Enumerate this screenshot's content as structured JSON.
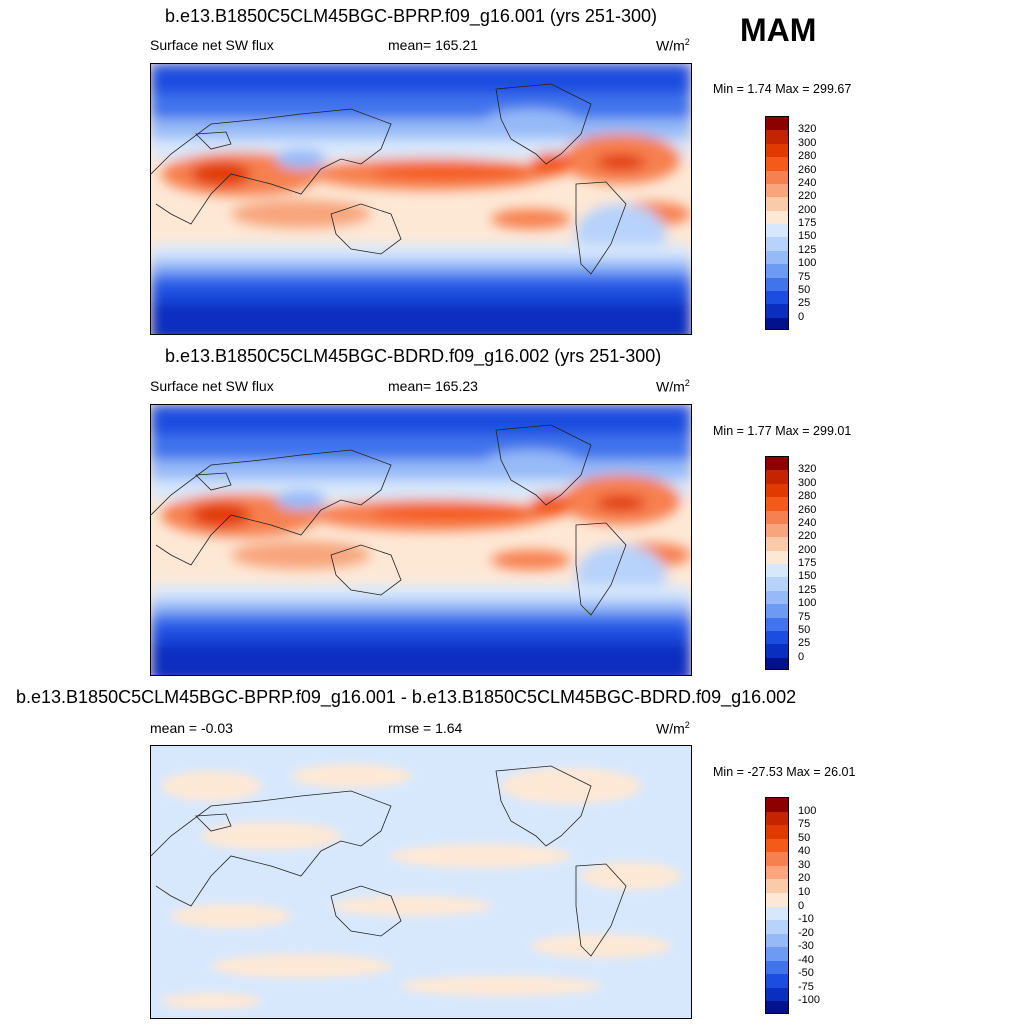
{
  "season": "MAM",
  "panels": [
    {
      "title": "b.e13.B1850C5CLM45BGC-BPRP.f09_g16.001 (yrs 251-300)",
      "left_label": "Surface net SW flux",
      "center_label": "mean= 165.21",
      "units_base": "W/m",
      "units_exp": "2",
      "minmax": "Min =   1.74 Max = 299.67"
    },
    {
      "title": "b.e13.B1850C5CLM45BGC-BDRD.f09_g16.002 (yrs 251-300)",
      "left_label": "Surface net SW flux",
      "center_label": "mean= 165.23",
      "units_base": "W/m",
      "units_exp": "2",
      "minmax": "Min =   1.77 Max = 299.01"
    },
    {
      "title": "b.e13.B1850C5CLM45BGC-BPRP.f09_g16.001 - b.e13.B1850C5CLM45BGC-BDRD.f09_g16.002",
      "left_label": "mean =  -0.03",
      "center_label": "rmse =   1.64",
      "units_base": "W/m",
      "units_exp": "2",
      "minmax": "Min = -27.53 Max =  26.01"
    }
  ],
  "colorbars": {
    "flux": {
      "labels": [
        "320",
        "300",
        "280",
        "260",
        "240",
        "220",
        "200",
        "175",
        "150",
        "125",
        "100",
        "75",
        "50",
        "25",
        "0"
      ],
      "colors": [
        "#8c0000",
        "#c42400",
        "#e03a00",
        "#f45a1a",
        "#f78050",
        "#f8a47c",
        "#fbcaa8",
        "#fde8d6",
        "#d8e8fc",
        "#b7d2fb",
        "#96baf8",
        "#6d9af2",
        "#4173ec",
        "#1b4ee0",
        "#0a2fc0",
        "#02128c"
      ]
    },
    "diff": {
      "labels": [
        "100",
        "75",
        "50",
        "40",
        "30",
        "20",
        "10",
        "0",
        "-10",
        "-20",
        "-30",
        "-40",
        "-50",
        "-75",
        "-100"
      ],
      "colors": [
        "#8c0000",
        "#c42400",
        "#e03a00",
        "#f45a1a",
        "#f78050",
        "#f8a47c",
        "#fbcaa8",
        "#fde8d6",
        "#d8e8fc",
        "#b7d2fb",
        "#96baf8",
        "#6d9af2",
        "#4173ec",
        "#1b4ee0",
        "#0a2fc0",
        "#02128c"
      ]
    }
  }
}
